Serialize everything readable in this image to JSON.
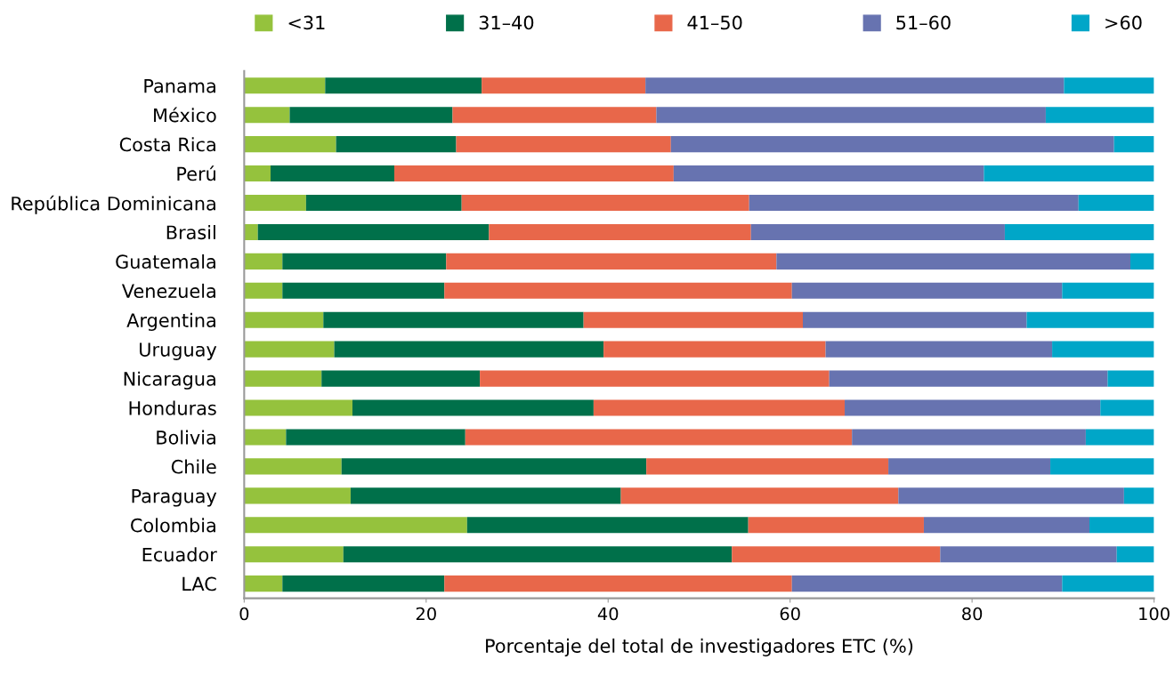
{
  "chart_data": {
    "type": "bar",
    "orientation": "horizontal",
    "stacked": true,
    "xlabel": "Porcentaje del total de investigadores ETC (%)",
    "categories": [
      "Panama",
      "México",
      "Costa Rica",
      "Perú",
      "República Dominicana",
      "Brasil",
      "Guatemala",
      "Venezuela",
      "Argentina",
      "Uruguay",
      "Nicaragua",
      "Honduras",
      "Bolivia",
      "Chile",
      "Paraguay",
      "Colombia",
      "Ecuador",
      "LAC"
    ],
    "series": [
      {
        "name": "<31",
        "color": "#95c23d",
        "values": [
          8.9,
          5.0,
          10.1,
          2.9,
          6.8,
          1.5,
          4.2,
          4.2,
          8.7,
          9.9,
          8.5,
          11.9,
          4.6,
          10.7,
          11.7,
          24.5,
          10.9,
          4.2
        ]
      },
      {
        "name": "31–40",
        "color": "#00704a",
        "values": [
          17.2,
          17.9,
          13.2,
          13.6,
          17.1,
          25.4,
          18.0,
          17.8,
          28.6,
          29.6,
          17.4,
          26.5,
          19.7,
          33.5,
          29.7,
          30.9,
          42.7,
          17.8
        ]
      },
      {
        "name": "41–50",
        "color": "#e8674a",
        "values": [
          18.0,
          22.4,
          23.6,
          30.7,
          31.6,
          28.8,
          36.3,
          38.2,
          24.1,
          24.4,
          38.4,
          27.6,
          42.5,
          26.6,
          30.5,
          19.3,
          22.9,
          38.2
        ]
      },
      {
        "name": "51–60",
        "color": "#6773b0",
        "values": [
          46.0,
          42.8,
          48.7,
          34.1,
          36.2,
          27.9,
          38.9,
          29.7,
          24.6,
          24.9,
          30.6,
          28.1,
          25.7,
          17.8,
          24.8,
          18.2,
          19.4,
          29.7
        ]
      },
      {
        "name": ">60",
        "color": "#00a6c8",
        "values": [
          9.9,
          11.9,
          4.4,
          18.7,
          8.3,
          16.4,
          2.6,
          10.1,
          14.0,
          11.2,
          5.1,
          5.9,
          7.5,
          11.4,
          3.3,
          7.1,
          4.1,
          10.1
        ]
      }
    ],
    "xlim": [
      0,
      100
    ],
    "xticks": [
      0,
      20,
      40,
      60,
      80,
      100
    ],
    "grid": false,
    "legend": "top"
  }
}
